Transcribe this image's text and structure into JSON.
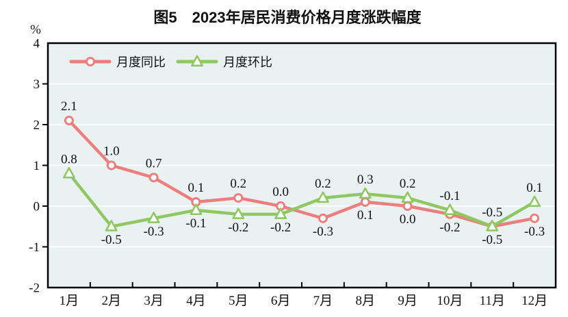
{
  "title": "图5　2023年居民消费价格月度涨跌幅度",
  "y_axis_unit": "%",
  "chart_data": {
    "type": "line",
    "title": "图5　2023年居民消费价格月度涨跌幅度",
    "categories": [
      "1月",
      "2月",
      "3月",
      "4月",
      "5月",
      "6月",
      "7月",
      "8月",
      "9月",
      "10月",
      "11月",
      "12月"
    ],
    "series": [
      {
        "id": "yoy",
        "name": "月度同比",
        "color": "#ee7d7d",
        "marker": "circle",
        "values": [
          2.1,
          1.0,
          0.7,
          0.1,
          0.2,
          0.0,
          -0.3,
          0.1,
          0.0,
          -0.2,
          -0.5,
          -0.3
        ],
        "label_side": [
          "above",
          "above",
          "above",
          "above",
          "above",
          "above",
          "below",
          "below",
          "below",
          "below",
          "below",
          "below"
        ]
      },
      {
        "id": "mom",
        "name": "月度环比",
        "color": "#8fc763",
        "marker": "triangle",
        "values": [
          0.8,
          -0.5,
          -0.3,
          -0.1,
          -0.2,
          -0.2,
          0.2,
          0.3,
          0.2,
          -0.1,
          -0.5,
          0.1
        ],
        "label_side": [
          "above",
          "below",
          "below",
          "below",
          "below",
          "below",
          "above",
          "above",
          "above",
          "above",
          "above",
          "above"
        ]
      }
    ],
    "xlabel": "",
    "ylabel": "%",
    "ylim": [
      -2,
      4
    ],
    "yticks": [
      4,
      3,
      2,
      1,
      0,
      -1,
      -2
    ],
    "grid": true,
    "grid_color": "#ffffff",
    "plot_bg_color": "#e9f2f1",
    "axis_color": "#000000",
    "text_color": "#111111",
    "marker_fill": "#ffffff",
    "legend_position": "top-left-inside"
  }
}
